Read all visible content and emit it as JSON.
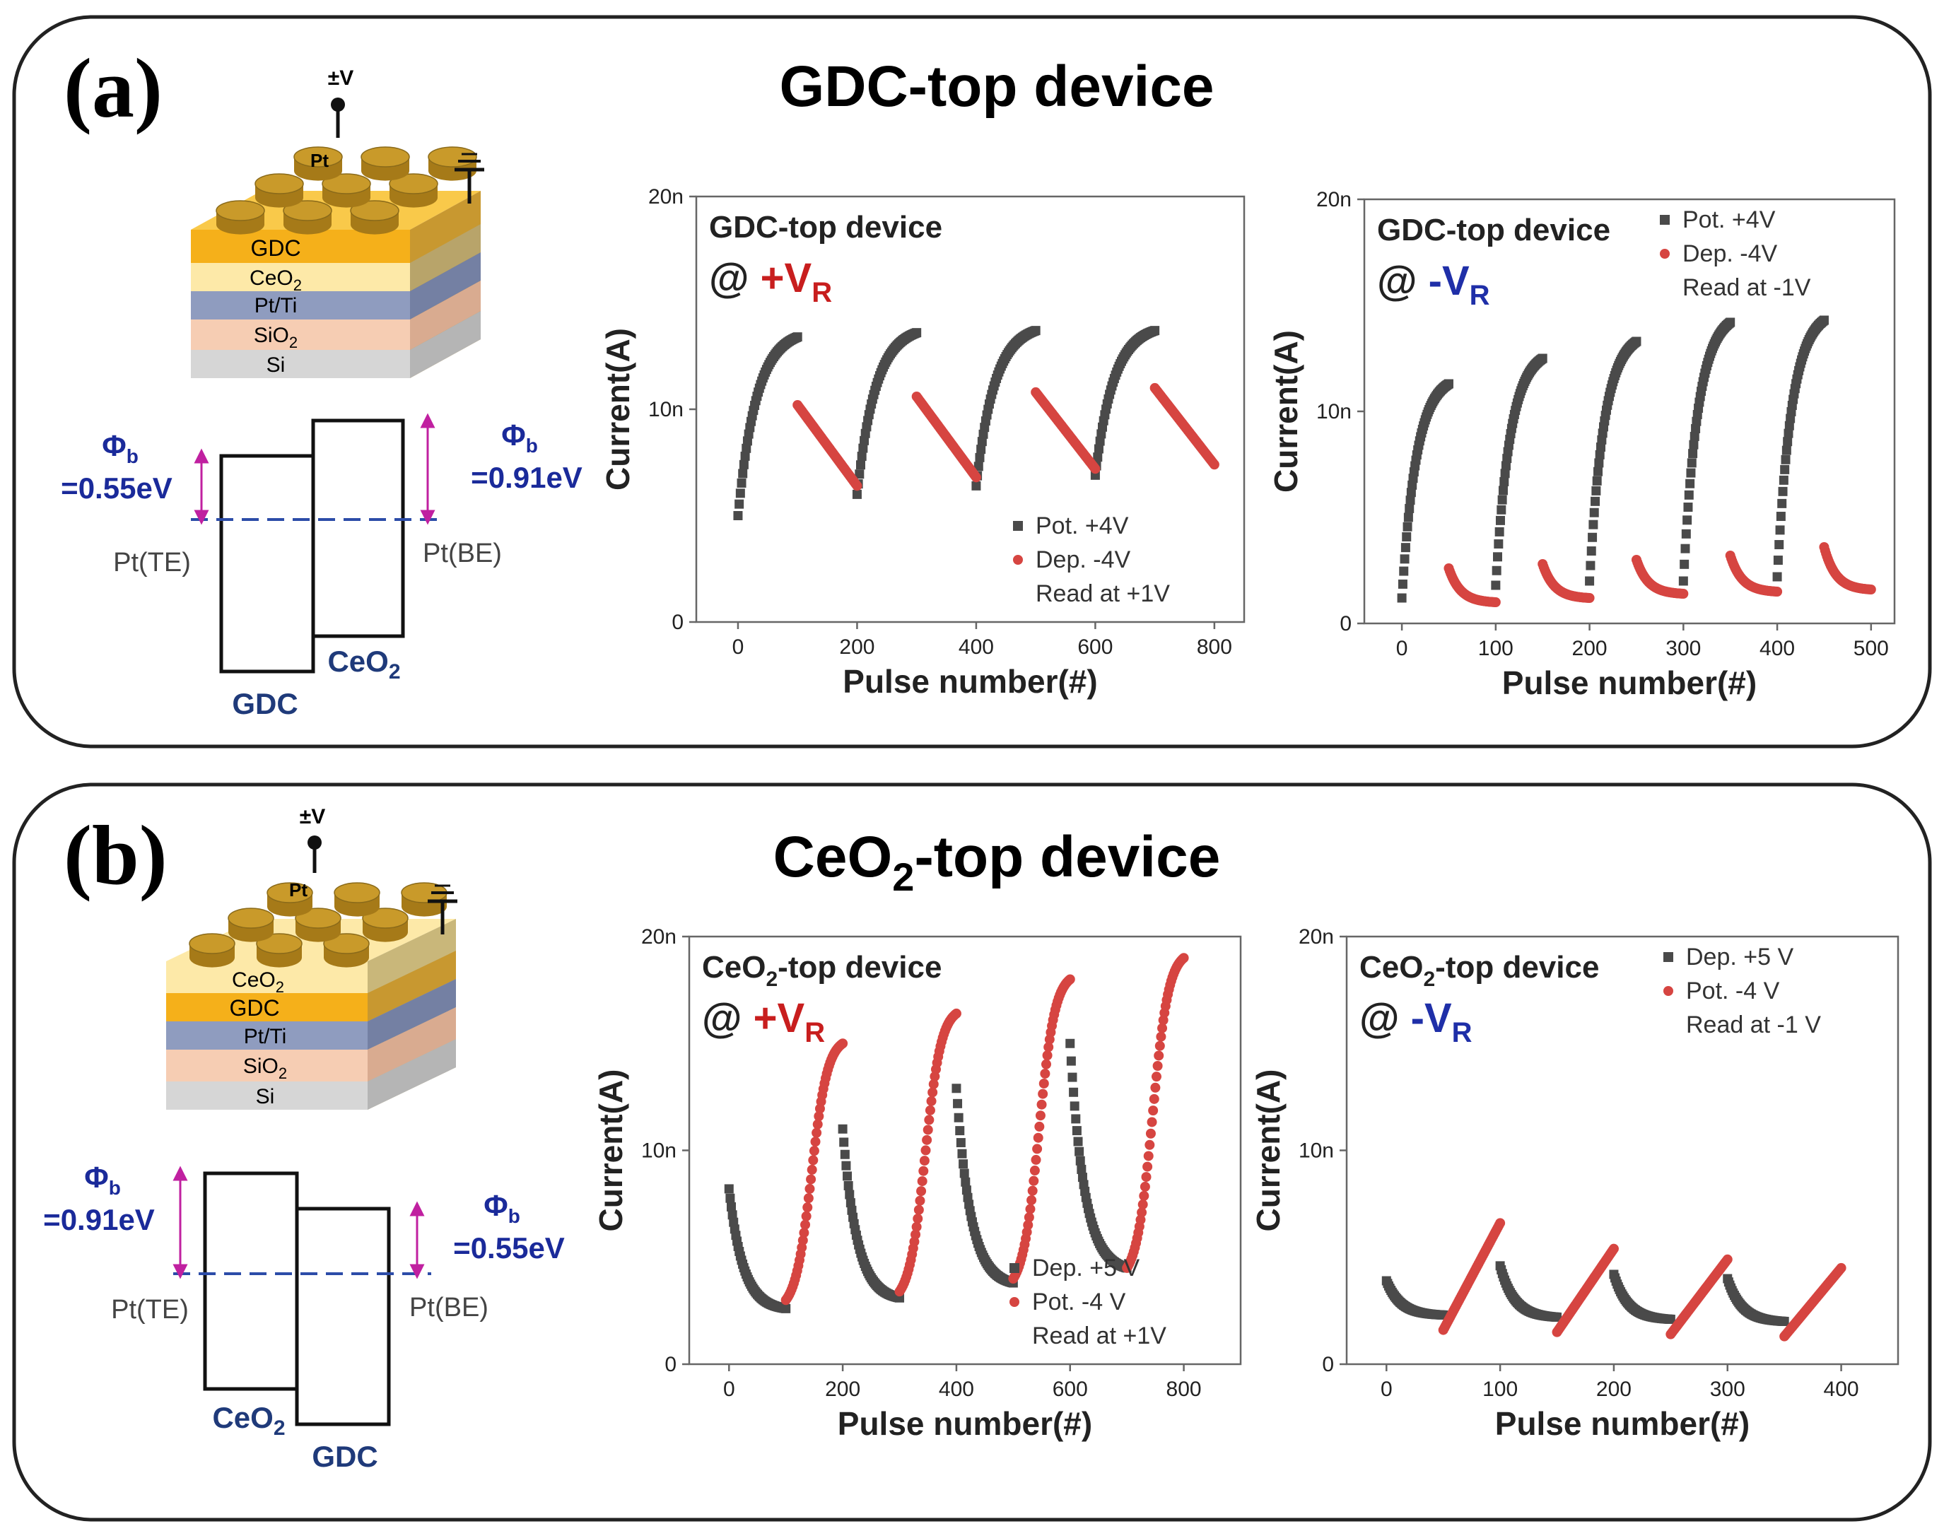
{
  "colors": {
    "black_series": "#4a4a4a",
    "red_series": "#d64541",
    "red_label": "#c81e1e",
    "blue_label": "#1f2fa8",
    "barrier_blue": "#1a2a9a",
    "arrow_magenta": "#c020a0",
    "gdc": "#f5b01a",
    "ceo2": "#fde9a8",
    "ptti": "#8f9cbf",
    "sio2": "#f6cdb3",
    "si": "#d6d6d6",
    "pt_dot": "#c99a2a"
  },
  "panels": [
    {
      "letter": "(a)",
      "title_pre": "GDC-top device",
      "title_sub": "",
      "title_post": "",
      "stack": {
        "pt": "Pt",
        "voltage": "±V",
        "layers": [
          {
            "main": "GDC",
            "sub": ""
          },
          {
            "main": "CeO",
            "sub": "2"
          },
          {
            "main": "Pt/Ti",
            "sub": ""
          },
          {
            "main": "SiO",
            "sub": "2"
          },
          {
            "main": "Si",
            "sub": ""
          }
        ]
      },
      "band": {
        "left_phi": "Φ",
        "left_phi_sub": "b",
        "left_value": "=0.55eV",
        "right_phi": "Φ",
        "right_phi_sub": "b",
        "right_value": "=0.91eV",
        "left_electrode": "Pt(TE)",
        "right_electrode": "Pt(BE)",
        "left_box_label": "GDC",
        "left_box_sub": "",
        "right_box_label": "CeO",
        "right_box_sub": "2"
      }
    },
    {
      "letter": "(b)",
      "title_pre": "CeO",
      "title_sub": "2",
      "title_post": "-top device",
      "stack": {
        "pt": "Pt",
        "voltage": "±V",
        "layers": [
          {
            "main": "CeO",
            "sub": "2"
          },
          {
            "main": "GDC",
            "sub": ""
          },
          {
            "main": "Pt/Ti",
            "sub": ""
          },
          {
            "main": "SiO",
            "sub": "2"
          },
          {
            "main": "Si",
            "sub": ""
          }
        ]
      },
      "band": {
        "left_phi": "Φ",
        "left_phi_sub": "b",
        "left_value": "=0.91eV",
        "right_phi": "Φ",
        "right_phi_sub": "b",
        "right_value": "=0.55eV",
        "left_electrode": "Pt(TE)",
        "right_electrode": "Pt(BE)",
        "left_box_label": "CeO",
        "left_box_sub": "2",
        "right_box_label": "GDC",
        "right_box_sub": ""
      }
    }
  ],
  "chart_data": [
    {
      "type": "scatter",
      "name": "a-plus",
      "title_pre": "GDC-top device",
      "title_sub": "",
      "title_post": "",
      "read_prefix": "@ ",
      "read_label": "+V",
      "read_sub": "R",
      "read_color": "red",
      "xlabel": "Pulse number(#)",
      "ylabel": "Current(A)",
      "xlim": [
        -70,
        850
      ],
      "ylim": [
        0,
        20
      ],
      "xticks": [
        0,
        200,
        400,
        600,
        800
      ],
      "yticks": [
        0,
        10,
        20
      ],
      "ytick_labels": [
        "0",
        "10n",
        "20n"
      ],
      "legend": [
        "Pot. +4V",
        "Dep. -4V",
        "Read at +1V"
      ],
      "legend_position": "bottom-right",
      "series": [
        {
          "name": "Pot. +4V",
          "color": "black",
          "segments": [
            {
              "x0": 0,
              "x1": 100,
              "y0": 5.0,
              "y1": 13.4,
              "shape": "sat"
            },
            {
              "x0": 200,
              "x1": 300,
              "y0": 6.0,
              "y1": 13.6,
              "shape": "sat"
            },
            {
              "x0": 400,
              "x1": 500,
              "y0": 6.4,
              "y1": 13.7,
              "shape": "sat"
            },
            {
              "x0": 600,
              "x1": 700,
              "y0": 6.9,
              "y1": 13.7,
              "shape": "sat"
            }
          ]
        },
        {
          "name": "Dep. -4V",
          "color": "red",
          "segments": [
            {
              "x0": 100,
              "x1": 200,
              "y0": 10.2,
              "y1": 6.4,
              "shape": "lin"
            },
            {
              "x0": 300,
              "x1": 400,
              "y0": 10.6,
              "y1": 6.8,
              "shape": "lin"
            },
            {
              "x0": 500,
              "x1": 600,
              "y0": 10.8,
              "y1": 7.2,
              "shape": "lin"
            },
            {
              "x0": 700,
              "x1": 800,
              "y0": 11.0,
              "y1": 7.4,
              "shape": "lin"
            }
          ]
        }
      ]
    },
    {
      "type": "scatter",
      "name": "a-minus",
      "title_pre": "GDC-top device",
      "title_sub": "",
      "title_post": "",
      "read_prefix": "@ ",
      "read_label": "-V",
      "read_sub": "R",
      "read_color": "blue",
      "xlabel": "Pulse number(#)",
      "ylabel": "Current(A)",
      "xlim": [
        -40,
        525
      ],
      "ylim": [
        0,
        20
      ],
      "xticks": [
        0,
        100,
        200,
        300,
        400,
        500
      ],
      "yticks": [
        0,
        10,
        20
      ],
      "ytick_labels": [
        "0",
        "10n",
        "20n"
      ],
      "legend": [
        "Pot. +4V",
        "Dep. -4V",
        "Read at -1V"
      ],
      "legend_position": "top-right",
      "series": [
        {
          "name": "Pot. +4V",
          "color": "black",
          "segments": [
            {
              "x0": 0,
              "x1": 50,
              "y0": 1.2,
              "y1": 11.3,
              "shape": "sat"
            },
            {
              "x0": 100,
              "x1": 150,
              "y0": 1.8,
              "y1": 12.5,
              "shape": "sat"
            },
            {
              "x0": 200,
              "x1": 250,
              "y0": 2.0,
              "y1": 13.3,
              "shape": "sat"
            },
            {
              "x0": 300,
              "x1": 350,
              "y0": 2.0,
              "y1": 14.2,
              "shape": "sat"
            },
            {
              "x0": 400,
              "x1": 450,
              "y0": 2.2,
              "y1": 14.3,
              "shape": "sat"
            }
          ]
        },
        {
          "name": "Dep. -4V",
          "color": "red",
          "segments": [
            {
              "x0": 50,
              "x1": 100,
              "y0": 2.6,
              "y1": 1.0,
              "shape": "dec"
            },
            {
              "x0": 150,
              "x1": 200,
              "y0": 2.8,
              "y1": 1.2,
              "shape": "dec"
            },
            {
              "x0": 250,
              "x1": 300,
              "y0": 3.0,
              "y1": 1.4,
              "shape": "dec"
            },
            {
              "x0": 350,
              "x1": 400,
              "y0": 3.2,
              "y1": 1.5,
              "shape": "dec"
            },
            {
              "x0": 450,
              "x1": 500,
              "y0": 3.6,
              "y1": 1.6,
              "shape": "dec"
            }
          ]
        }
      ]
    },
    {
      "type": "scatter",
      "name": "b-plus",
      "title_pre": "CeO",
      "title_sub": "2",
      "title_post": "-top device",
      "read_prefix": "@ ",
      "read_label": "+V",
      "read_sub": "R",
      "read_color": "red",
      "xlabel": "Pulse number(#)",
      "ylabel": "Current(A)",
      "xlim": [
        -70,
        900
      ],
      "ylim": [
        0,
        20
      ],
      "xticks": [
        0,
        200,
        400,
        600,
        800
      ],
      "yticks": [
        0,
        10,
        20
      ],
      "ytick_labels": [
        "0",
        "10n",
        "20n"
      ],
      "legend": [
        "Dep. +5 V",
        "Pot. -4 V",
        "Read at +1V"
      ],
      "legend_position": "bottom-right",
      "series": [
        {
          "name": "Dep. +5 V",
          "color": "black",
          "segments": [
            {
              "x0": 0,
              "x1": 100,
              "y0": 8.2,
              "y1": 2.6,
              "shape": "dec"
            },
            {
              "x0": 200,
              "x1": 300,
              "y0": 11.0,
              "y1": 3.1,
              "shape": "dec"
            },
            {
              "x0": 400,
              "x1": 500,
              "y0": 12.9,
              "y1": 3.8,
              "shape": "dec"
            },
            {
              "x0": 600,
              "x1": 700,
              "y0": 15.0,
              "y1": 4.5,
              "shape": "dec"
            }
          ]
        },
        {
          "name": "Pot. -4 V",
          "color": "red",
          "segments": [
            {
              "x0": 100,
              "x1": 200,
              "y0": 3.0,
              "y1": 15.0,
              "shape": "sig"
            },
            {
              "x0": 300,
              "x1": 400,
              "y0": 3.4,
              "y1": 16.4,
              "shape": "sig"
            },
            {
              "x0": 500,
              "x1": 600,
              "y0": 4.0,
              "y1": 18.0,
              "shape": "sig"
            },
            {
              "x0": 700,
              "x1": 800,
              "y0": 4.5,
              "y1": 19.0,
              "shape": "sig"
            }
          ]
        }
      ]
    },
    {
      "type": "scatter",
      "name": "b-minus",
      "title_pre": "CeO",
      "title_sub": "2",
      "title_post": "-top device",
      "read_prefix": "@ ",
      "read_label": "-V",
      "read_sub": "R",
      "read_color": "blue",
      "xlabel": "Pulse number(#)",
      "ylabel": "Current(A)",
      "xlim": [
        -35,
        450
      ],
      "ylim": [
        0,
        20
      ],
      "xticks": [
        0,
        100,
        200,
        300,
        400
      ],
      "yticks": [
        0,
        10,
        20
      ],
      "ytick_labels": [
        "0",
        "10n",
        "20n"
      ],
      "legend": [
        "Dep. +5 V",
        "Pot. -4 V",
        "Read at -1 V"
      ],
      "legend_position": "top-right",
      "series": [
        {
          "name": "Dep. +5 V",
          "color": "black",
          "segments": [
            {
              "x0": 0,
              "x1": 50,
              "y0": 3.9,
              "y1": 2.3,
              "shape": "dec"
            },
            {
              "x0": 100,
              "x1": 150,
              "y0": 4.6,
              "y1": 2.2,
              "shape": "dec"
            },
            {
              "x0": 200,
              "x1": 250,
              "y0": 4.2,
              "y1": 2.1,
              "shape": "dec"
            },
            {
              "x0": 300,
              "x1": 350,
              "y0": 4.0,
              "y1": 2.0,
              "shape": "dec"
            }
          ]
        },
        {
          "name": "Pot. -4 V",
          "color": "red",
          "segments": [
            {
              "x0": 50,
              "x1": 100,
              "y0": 1.6,
              "y1": 6.6,
              "shape": "lin"
            },
            {
              "x0": 150,
              "x1": 200,
              "y0": 1.5,
              "y1": 5.4,
              "shape": "lin"
            },
            {
              "x0": 250,
              "x1": 300,
              "y0": 1.4,
              "y1": 4.9,
              "shape": "lin"
            },
            {
              "x0": 350,
              "x1": 400,
              "y0": 1.3,
              "y1": 4.5,
              "shape": "lin"
            }
          ]
        }
      ]
    }
  ]
}
